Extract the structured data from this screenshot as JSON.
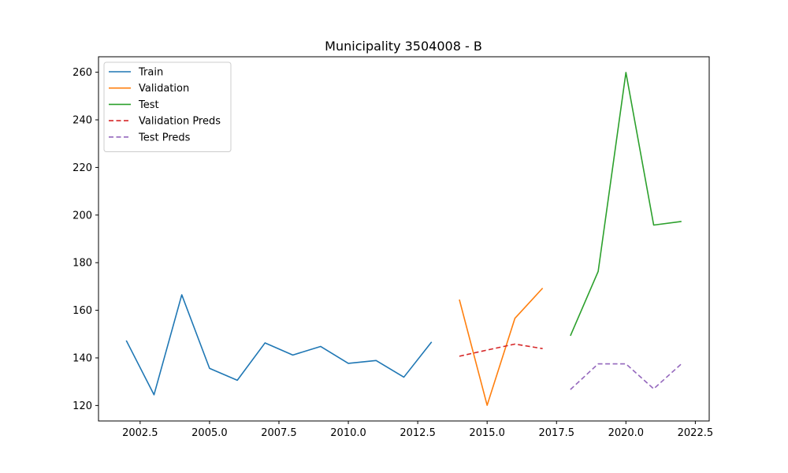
{
  "chart_data": {
    "type": "line",
    "title": "Municipality 3504008 - B",
    "xlabel": "",
    "ylabel": "",
    "xlim": [
      2001.0,
      2023.0
    ],
    "ylim": [
      113.5,
      266.5
    ],
    "xticks": [
      2002.5,
      2005.0,
      2007.5,
      2010.0,
      2012.5,
      2015.0,
      2017.5,
      2020.0,
      2022.5
    ],
    "xtick_labels": [
      "2002.5",
      "2005.0",
      "2007.5",
      "2010.0",
      "2012.5",
      "2015.0",
      "2017.5",
      "2020.0",
      "2022.5"
    ],
    "yticks": [
      120,
      140,
      160,
      180,
      200,
      220,
      240,
      260
    ],
    "ytick_labels": [
      "120",
      "140",
      "160",
      "180",
      "200",
      "220",
      "240",
      "260"
    ],
    "grid": false,
    "legend_position": "top-left",
    "series": [
      {
        "name": "Train",
        "color": "#1f77b4",
        "dash": "solid",
        "x": [
          2002,
          2003,
          2004,
          2005,
          2006,
          2007,
          2008,
          2009,
          2010,
          2011,
          2012,
          2013
        ],
        "y": [
          147.3,
          124.5,
          166.5,
          135.6,
          130.6,
          146.3,
          141.2,
          144.8,
          137.7,
          138.9,
          131.9,
          146.7
        ]
      },
      {
        "name": "Validation",
        "color": "#ff7f0e",
        "dash": "solid",
        "x": [
          2014,
          2015,
          2016,
          2017
        ],
        "y": [
          164.5,
          120.1,
          156.6,
          169.3
        ]
      },
      {
        "name": "Test",
        "color": "#2ca02c",
        "dash": "solid",
        "x": [
          2018,
          2019,
          2020,
          2021,
          2022
        ],
        "y": [
          149.3,
          176.3,
          259.9,
          195.8,
          197.3
        ]
      },
      {
        "name": "Validation Preds",
        "color": "#d62728",
        "dash": "dashed",
        "x": [
          2014,
          2015,
          2016,
          2017
        ],
        "y": [
          140.7,
          143.3,
          145.8,
          143.9
        ]
      },
      {
        "name": "Test Preds",
        "color": "#9467bd",
        "dash": "dashed",
        "x": [
          2018,
          2019,
          2020,
          2021,
          2022
        ],
        "y": [
          126.7,
          137.5,
          137.5,
          127.0,
          137.5
        ]
      }
    ]
  }
}
